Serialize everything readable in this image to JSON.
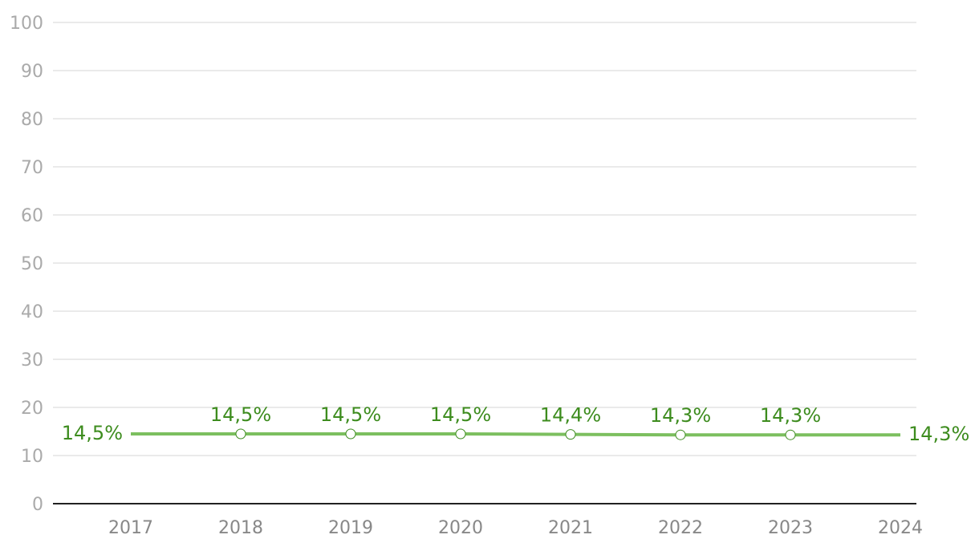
{
  "chart_data": {
    "type": "line",
    "categories": [
      "2017",
      "2018",
      "2019",
      "2020",
      "2021",
      "2022",
      "2023",
      "2024"
    ],
    "series": [
      {
        "color": "#7cbf5f",
        "label_color": "#3d8c1e",
        "values": [
          14.5,
          14.5,
          14.5,
          14.5,
          14.4,
          14.3,
          14.3,
          14.3
        ],
        "value_labels": [
          "14,5%",
          "14,5%",
          "14,5%",
          "14,5%",
          "14,4%",
          "14,3%",
          "14,3%",
          "14,3%"
        ]
      }
    ],
    "ylim": [
      0,
      100
    ],
    "yticks": [
      0,
      10,
      20,
      30,
      40,
      50,
      60,
      70,
      80,
      90,
      100
    ],
    "grid": true
  }
}
